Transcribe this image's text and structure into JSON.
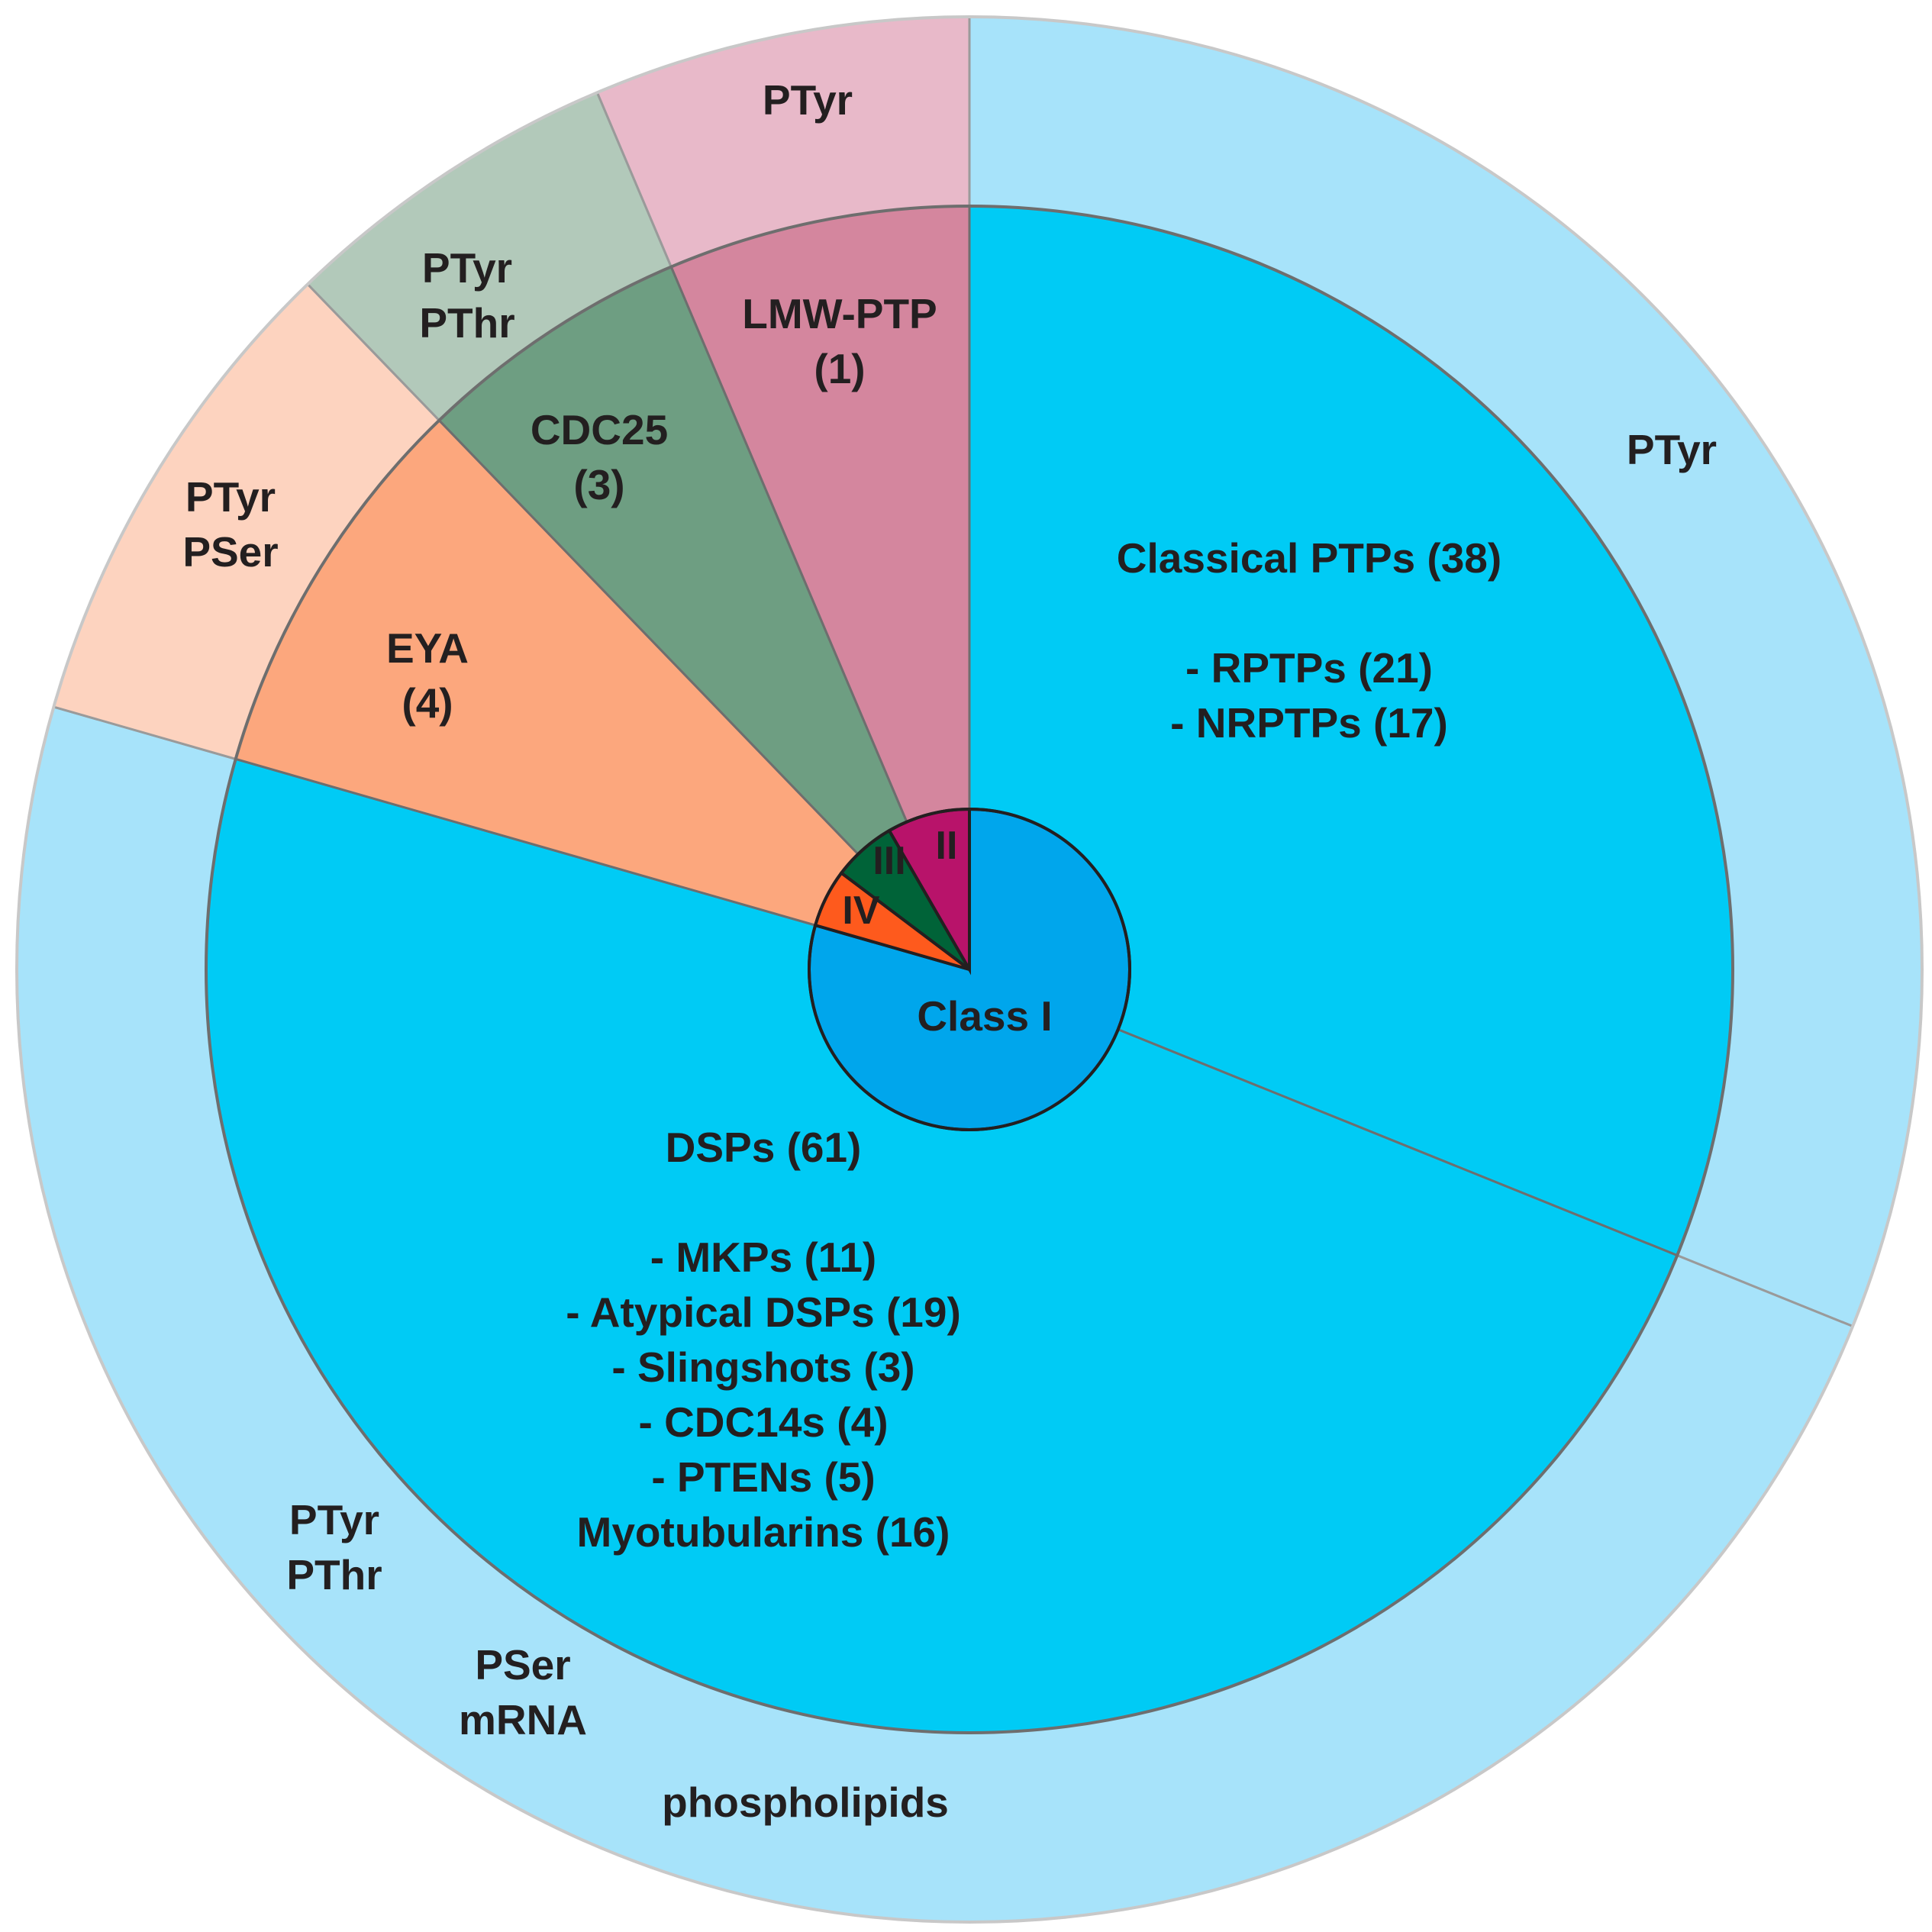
{
  "chart_data": {
    "type": "pie",
    "center_pie": [
      {
        "name": "Class I",
        "value": 99,
        "color": "#00a6ec"
      },
      {
        "name": "IV",
        "value": 4,
        "color": "#fe5a1d"
      },
      {
        "name": "III",
        "value": 3,
        "color": "#006338"
      },
      {
        "name": "II",
        "value": 1,
        "color": "#b8136a"
      }
    ],
    "inner_ring": [
      {
        "id": "classical",
        "value": 38,
        "color": "#00cbf5",
        "lines": [
          "Classical PTPs (38)",
          "",
          "- RPTPs (21)",
          "- NRPTPs (17)"
        ]
      },
      {
        "id": "dsps",
        "value": 61,
        "color": "#00cbf5",
        "lines": [
          "DSPs (61)",
          "",
          "- MKPs (11)",
          "- Atypical DSPs (19)",
          "- Slingshots (3)",
          "- CDC14s (4)",
          "- PTENs (5)",
          "Myotubularins (16)"
        ]
      },
      {
        "id": "eya",
        "value": 4,
        "color": "#fca77d",
        "lines": [
          "EYA",
          "(4)"
        ]
      },
      {
        "id": "cdc25",
        "value": 3,
        "color": "#6e9e82",
        "lines": [
          "CDC25",
          "(3)"
        ]
      },
      {
        "id": "lmw",
        "value": 1,
        "color": "#d4869e",
        "lines": [
          "LMW-PTP",
          "(1)"
        ]
      }
    ],
    "outer_ring": [
      {
        "id": "classical",
        "value": 38,
        "color": "#a7e3fa",
        "lines": [
          "PTyr"
        ]
      },
      {
        "id": "dsps",
        "value": 61,
        "color": "#a7e3fa",
        "lines": [
          "PTyr",
          "PThr"
        ],
        "extra": [
          "PSer",
          "mRNA"
        ],
        "extra2": [
          "phospholipids"
        ]
      },
      {
        "id": "eya",
        "value": 4,
        "color": "#fdd3bf",
        "lines": [
          "PTyr",
          "PSer"
        ]
      },
      {
        "id": "cdc25",
        "value": 3,
        "color": "#b2c9ba",
        "lines": [
          "PTyr",
          "PThr"
        ]
      },
      {
        "id": "lmw",
        "value": 1,
        "color": "#e8b9c9",
        "lines": [
          "PTyr"
        ]
      }
    ],
    "wedge_angles_deg": {
      "classical": [
        0,
        112
      ],
      "dsps": [
        112,
        286
      ],
      "eya": [
        286,
        316
      ],
      "cdc25": [
        316,
        337
      ],
      "lmw": [
        337,
        360
      ]
    },
    "center_angles_deg": {
      "Class I": [
        0,
        286
      ],
      "IV": [
        286,
        307
      ],
      "III": [
        307,
        330
      ],
      "II": [
        330,
        360
      ]
    },
    "legend": "none"
  }
}
